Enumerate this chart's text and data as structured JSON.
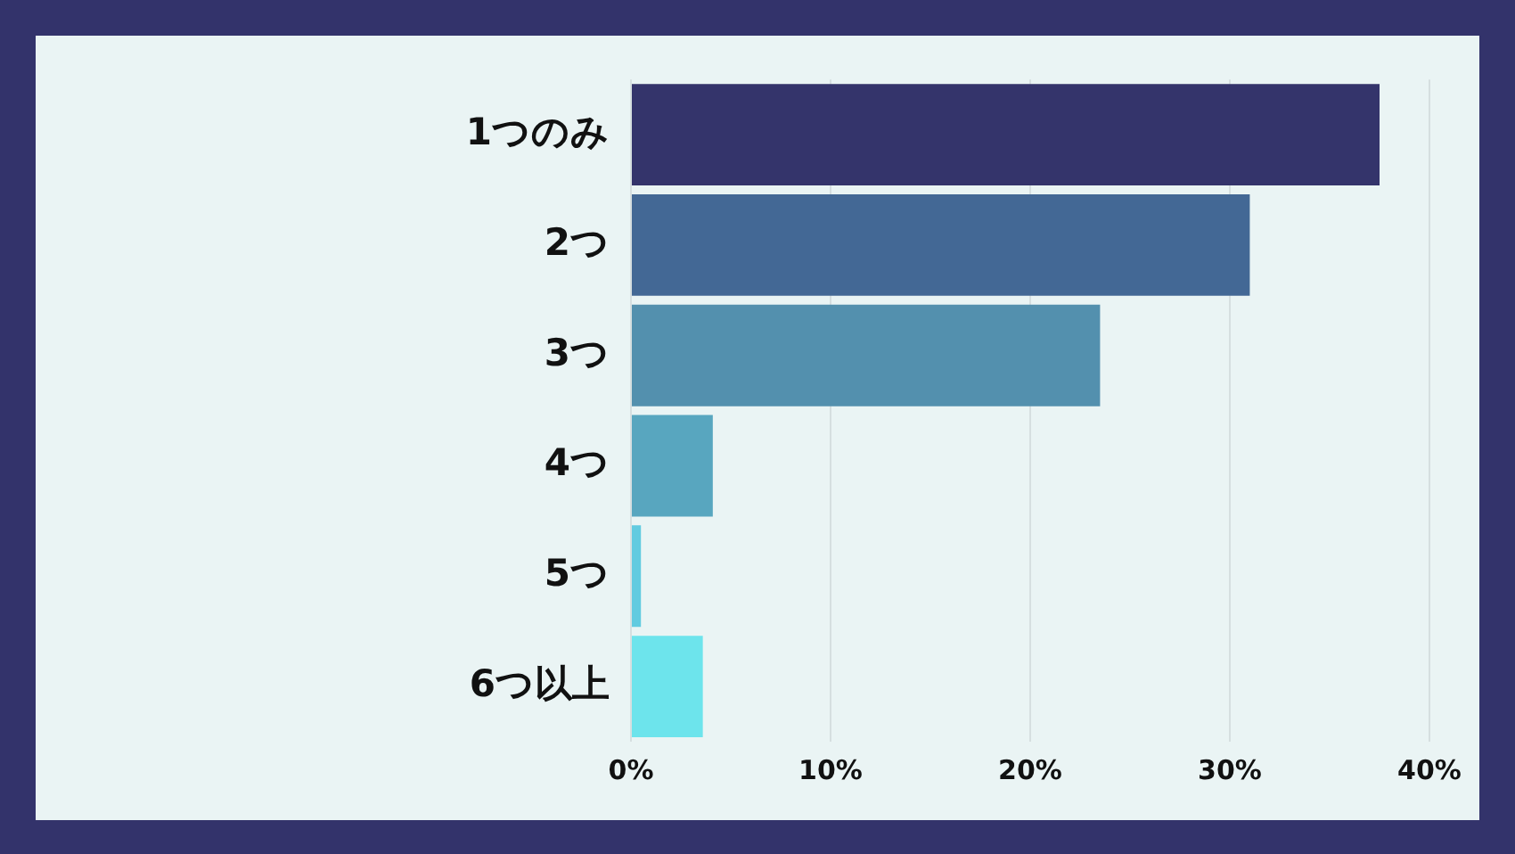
{
  "chart_data": {
    "type": "bar",
    "orientation": "horizontal",
    "categories": [
      "1つのみ",
      "2つ",
      "3つ",
      "4つ",
      "5つ",
      "6つ以上"
    ],
    "values": [
      37.5,
      31.0,
      23.5,
      4.1,
      0.5,
      3.6
    ],
    "colors": [
      "#34346b",
      "#436895",
      "#5390ae",
      "#58a6bf",
      "#62cbe0",
      "#6de4ec"
    ],
    "xlim": [
      0,
      40
    ],
    "xticks": [
      {
        "value": 0,
        "label": "0%"
      },
      {
        "value": 10,
        "label": "10%"
      },
      {
        "value": 20,
        "label": "20%"
      },
      {
        "value": 30,
        "label": "30%"
      },
      {
        "value": 40,
        "label": "40%"
      }
    ],
    "grid": "x",
    "legend": false
  }
}
